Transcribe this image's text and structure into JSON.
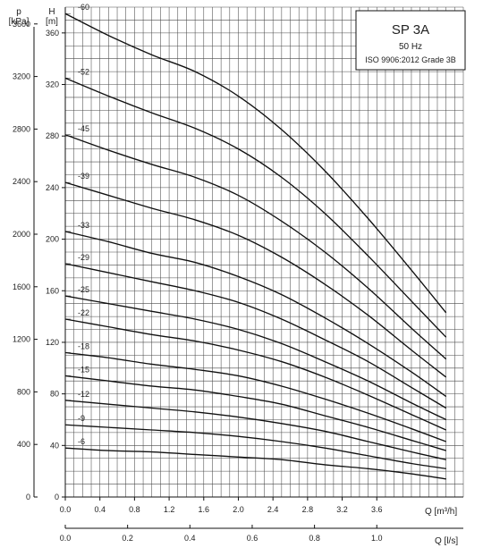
{
  "chart_data": {
    "type": "line",
    "title": "SP 3A",
    "subtitle": "50 Hz",
    "standard": "ISO 9906:2012 Grade 3B",
    "y_label": "H",
    "y_unit": "[m]",
    "y2_label": "p",
    "y2_unit": "[kPa]",
    "x_label": "Q [m³/h]",
    "x2_label": "Q [l/s]",
    "xlim": [
      0,
      4.6
    ],
    "ylim": [
      0,
      380
    ],
    "x_ticks": [
      "0.0",
      "0.4",
      "0.8",
      "1.2",
      "1.6",
      "2.0",
      "2.4",
      "2.8",
      "3.2",
      "3.6"
    ],
    "y_ticks": [
      "0",
      "40",
      "80",
      "120",
      "160",
      "200",
      "240",
      "280",
      "320",
      "360"
    ],
    "y2_ticks": [
      "0",
      "400",
      "800",
      "1200",
      "1600",
      "2000",
      "2400",
      "2800",
      "3200",
      "3600"
    ],
    "x2_ticks": [
      "0.0",
      "0.2",
      "0.4",
      "0.6",
      "0.8",
      "1.0"
    ],
    "grid": true,
    "series": [
      {
        "name": "-60",
        "x": [
          0,
          0.5,
          1.0,
          1.5,
          2.0,
          2.5,
          3.0,
          3.5,
          4.0,
          4.4
        ],
        "y": [
          375,
          358,
          343,
          330,
          311,
          285,
          253,
          216,
          176,
          143
        ]
      },
      {
        "name": "-52",
        "x": [
          0,
          0.5,
          1.0,
          1.5,
          2.0,
          2.5,
          3.0,
          3.5,
          4.0,
          4.4
        ],
        "y": [
          325,
          311,
          298,
          286,
          270,
          248,
          220,
          187,
          152,
          124
        ]
      },
      {
        "name": "-45",
        "x": [
          0,
          0.5,
          1.0,
          1.5,
          2.0,
          2.5,
          3.0,
          3.5,
          4.0,
          4.4
        ],
        "y": [
          281,
          269,
          258,
          248,
          234,
          214,
          190,
          162,
          131,
          107
        ]
      },
      {
        "name": "-39",
        "x": [
          0,
          0.5,
          1.0,
          1.5,
          2.0,
          2.5,
          3.0,
          3.5,
          4.0,
          4.4
        ],
        "y": [
          244,
          234,
          224,
          215,
          203,
          186,
          165,
          141,
          114,
          93
        ]
      },
      {
        "name": "-33",
        "x": [
          0,
          0.5,
          1.0,
          1.5,
          2.0,
          2.5,
          3.0,
          3.5,
          4.0,
          4.4
        ],
        "y": [
          206,
          198,
          189,
          182,
          171,
          157,
          139,
          119,
          97,
          78
        ]
      },
      {
        "name": "-29",
        "x": [
          0,
          0.5,
          1.0,
          1.5,
          2.0,
          2.5,
          3.0,
          3.5,
          4.0,
          4.4
        ],
        "y": [
          181,
          174,
          167,
          160,
          151,
          138,
          122,
          105,
          85,
          69
        ]
      },
      {
        "name": "-25",
        "x": [
          0,
          0.5,
          1.0,
          1.5,
          2.0,
          2.5,
          3.0,
          3.5,
          4.0,
          4.4
        ],
        "y": [
          156,
          150,
          144,
          138,
          130,
          119,
          105,
          90,
          73,
          60
        ]
      },
      {
        "name": "-22",
        "x": [
          0,
          0.5,
          1.0,
          1.5,
          2.0,
          2.5,
          3.0,
          3.5,
          4.0,
          4.4
        ],
        "y": [
          138,
          132,
          126,
          121,
          114,
          105,
          93,
          79,
          64,
          52
        ]
      },
      {
        "name": "-18",
        "x": [
          0,
          0.5,
          1.0,
          1.5,
          2.0,
          2.5,
          3.0,
          3.5,
          4.0,
          4.4
        ],
        "y": [
          112,
          108,
          103,
          99,
          94,
          86,
          76,
          65,
          53,
          43
        ]
      },
      {
        "name": "-15",
        "x": [
          0,
          0.5,
          1.0,
          1.5,
          2.0,
          2.5,
          3.0,
          3.5,
          4.0,
          4.4
        ],
        "y": [
          94,
          90,
          86,
          83,
          78,
          72,
          63,
          54,
          44,
          36
        ]
      },
      {
        "name": "-12",
        "x": [
          0,
          0.5,
          1.0,
          1.5,
          2.0,
          2.5,
          3.0,
          3.5,
          4.0,
          4.4
        ],
        "y": [
          75,
          72,
          69,
          66,
          62,
          57,
          51,
          43,
          35,
          29
        ]
      },
      {
        "name": "-9",
        "x": [
          0,
          0.5,
          1.0,
          1.5,
          2.0,
          2.5,
          3.0,
          3.5,
          4.0,
          4.4
        ],
        "y": [
          56,
          54,
          52,
          50,
          47,
          43,
          38,
          32,
          26,
          22
        ]
      },
      {
        "name": "-6",
        "x": [
          0,
          0.5,
          1.0,
          1.5,
          2.0,
          2.5,
          3.0,
          3.5,
          4.0,
          4.4
        ],
        "y": [
          38,
          36,
          35,
          33,
          31,
          29,
          25,
          22,
          18,
          14
        ]
      }
    ]
  }
}
